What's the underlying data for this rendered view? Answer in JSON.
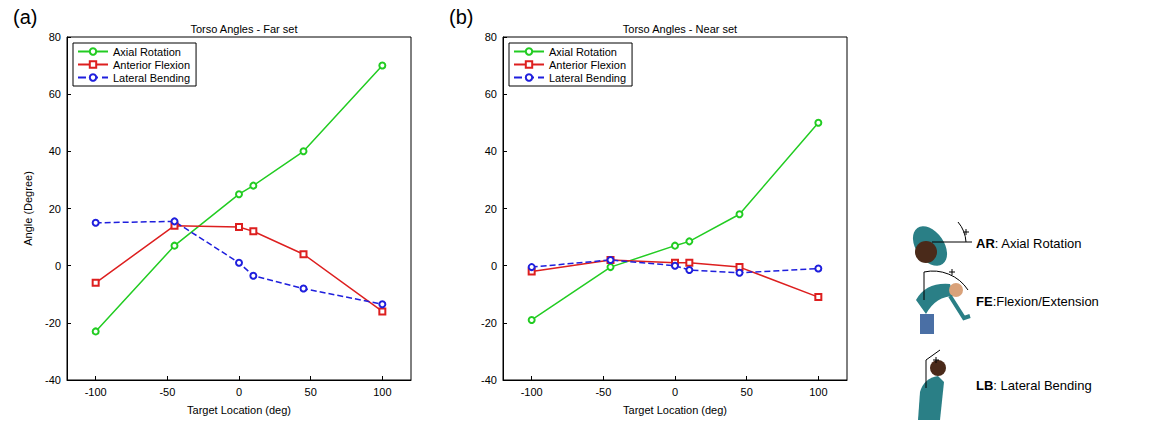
{
  "chart_data": [
    {
      "type": "line",
      "panel": "(a)",
      "title": "Torso Angles - Far set",
      "xlabel": "Target Location (deg)",
      "ylabel": "Angle (Degree)",
      "xlim": [
        -120,
        120
      ],
      "xticks": [
        -100,
        -50,
        0,
        50,
        100
      ],
      "ylim": [
        -40,
        80
      ],
      "yticks": [
        -40,
        -20,
        0,
        20,
        40,
        60,
        80
      ],
      "grid": false,
      "legend": "upper left",
      "x": [
        -100,
        -45,
        0,
        10,
        45,
        100
      ],
      "series": [
        {
          "name": "Axial Rotation",
          "color": "#22cc22",
          "marker": "circle",
          "line_style": "solid",
          "values": [
            -23,
            7,
            25,
            28,
            40,
            70
          ]
        },
        {
          "name": "Anterior Flexion",
          "color": "#dd1f1f",
          "marker": "square",
          "line_style": "solid",
          "values": [
            -6,
            14,
            13.5,
            12,
            4,
            -16
          ]
        },
        {
          "name": "Lateral Bending",
          "color": "#1f1fdd",
          "marker": "circle",
          "line_style": "dashed",
          "values": [
            15,
            15.5,
            1,
            -3.5,
            -8,
            -13.5
          ]
        }
      ]
    },
    {
      "type": "line",
      "panel": "(b)",
      "title": "Torso Angles - Near set",
      "xlabel": "Target Location (deg)",
      "xlim": [
        -120,
        120
      ],
      "xticks": [
        -100,
        -50,
        0,
        50,
        100
      ],
      "ylim": [
        -40,
        80
      ],
      "yticks": [
        -40,
        -20,
        0,
        20,
        40,
        60,
        80
      ],
      "grid": false,
      "legend": "upper left",
      "x": [
        -100,
        -45,
        0,
        10,
        45,
        100
      ],
      "series": [
        {
          "name": "Axial Rotation",
          "color": "#22cc22",
          "marker": "circle",
          "line_style": "solid",
          "values": [
            -19,
            -0.5,
            7,
            8.5,
            18,
            50
          ]
        },
        {
          "name": "Anterior Flexion",
          "color": "#dd1f1f",
          "marker": "square",
          "line_style": "solid",
          "values": [
            -2,
            2,
            1,
            1,
            -0.5,
            -11
          ]
        },
        {
          "name": "Lateral Bending",
          "color": "#1f1fdd",
          "marker": "circle",
          "line_style": "dashed",
          "values": [
            -0.5,
            2,
            0,
            -1.5,
            -2.5,
            -1
          ]
        }
      ]
    }
  ],
  "figure_key": [
    {
      "label": "AR: Axial Rotation"
    },
    {
      "label": "FE:Flexion/Extension"
    },
    {
      "label": "LB: Lateral Bending"
    }
  ]
}
